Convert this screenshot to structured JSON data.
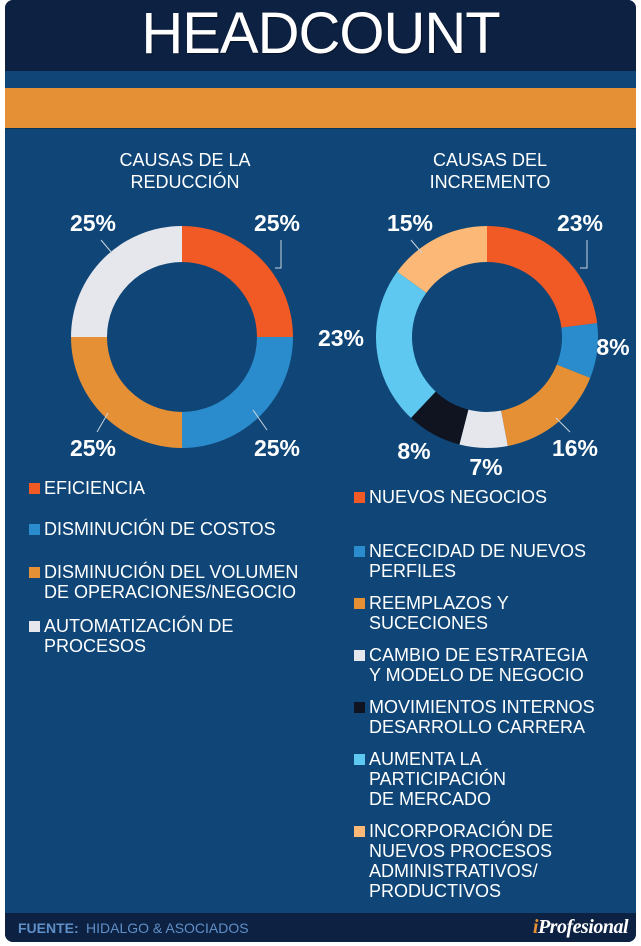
{
  "header": {
    "title": "HEADCOUNT"
  },
  "colors": {
    "navy": "#0d2143",
    "body_blue": "#0f4677",
    "orange_band": "#e69035",
    "text": "#ffffff",
    "footer_text": "#5f8fc7"
  },
  "chart_data": [
    {
      "type": "pie",
      "variant": "donut",
      "title": "CAUSAS DE LA REDUCCIÓN",
      "title_lines": [
        "CAUSAS DE LA",
        "REDUCCIÓN"
      ],
      "slices": [
        {
          "label": "EFICIENCIA",
          "value": 25,
          "display": "25%",
          "color": "#f15a24"
        },
        {
          "label": "DISMINUCIÓN DE COSTOS",
          "value": 25,
          "display": "25%",
          "color": "#2b8ccd"
        },
        {
          "label": "DISMINUCIÓN DEL VOLUMEN DE OPERACIONES/NEGOCIO",
          "value": 25,
          "display": "25%",
          "color": "#e69035"
        },
        {
          "label": "AUTOMATIZACIÓN DE PROCESOS",
          "value": 25,
          "display": "25%",
          "color": "#e6e7ec"
        }
      ],
      "legend": [
        {
          "lines": [
            "EFICIENCIA"
          ],
          "color": "#f15a24"
        },
        {
          "lines": [
            "DISMINUCIÓN DE COSTOS"
          ],
          "color": "#2b8ccd"
        },
        {
          "lines": [
            "DISMINUCIÓN DEL VOLUMEN",
            "DE OPERACIONES/NEGOCIO"
          ],
          "color": "#e69035"
        },
        {
          "lines": [
            "AUTOMATIZACIÓN DE",
            "PROCESOS"
          ],
          "color": "#e6e7ec"
        }
      ]
    },
    {
      "type": "pie",
      "variant": "donut",
      "title": "CAUSAS DEL INCREMENTO",
      "title_lines": [
        "CAUSAS DEL",
        "INCREMENTO"
      ],
      "slices": [
        {
          "label": "NUEVOS NEGOCIOS",
          "value": 23,
          "display": "23%",
          "color": "#f15a24"
        },
        {
          "label": "NECECIDAD DE NUEVOS PERFILES",
          "value": 8,
          "display": "8%",
          "color": "#2b8ccd"
        },
        {
          "label": "REEMPLAZOS Y SUCECIONES",
          "value": 16,
          "display": "16%",
          "color": "#e69035"
        },
        {
          "label": "CAMBIO DE ESTRATEGIA Y MODELO DE NEGOCIO",
          "value": 7,
          "display": "7%",
          "color": "#e6e7ec"
        },
        {
          "label": "MOVIMIENTOS INTERNOS DESARROLLO CARRERA",
          "value": 8,
          "display": "8%",
          "color": "#0f1420"
        },
        {
          "label": "AUMENTA LA PARTICIPACIÓN DE MERCADO",
          "value": 23,
          "display": "23%",
          "color": "#5ec8f0"
        },
        {
          "label": "INCORPORACIÓN DE NUEVOS PROCESOS ADMINISTRATIVOS/ PRODUCTIVOS",
          "value": 15,
          "display": "15%",
          "color": "#fbb877"
        }
      ],
      "legend": [
        {
          "lines": [
            "NUEVOS NEGOCIOS"
          ],
          "color": "#f15a24"
        },
        {
          "lines": [
            "NECECIDAD DE NUEVOS",
            "PERFILES"
          ],
          "color": "#2b8ccd"
        },
        {
          "lines": [
            "REEMPLAZOS Y",
            "SUCECIONES"
          ],
          "color": "#e69035"
        },
        {
          "lines": [
            "CAMBIO DE ESTRATEGIA",
            "Y MODELO DE NEGOCIO"
          ],
          "color": "#e6e7ec"
        },
        {
          "lines": [
            "MOVIMIENTOS INTERNOS",
            "DESARROLLO CARRERA"
          ],
          "color": "#0f1420"
        },
        {
          "lines": [
            "AUMENTA LA",
            "PARTICIPACIÓN",
            "DE MERCADO"
          ],
          "color": "#5ec8f0"
        },
        {
          "lines": [
            "INCORPORACIÓN DE",
            "NUEVOS PROCESOS",
            "ADMINISTRATIVOS/",
            "PRODUCTIVOS"
          ],
          "color": "#fbb877"
        }
      ]
    }
  ],
  "footer": {
    "label": "FUENTE:",
    "source": "HIDALGO & ASOCIADOS",
    "brand_i": "i",
    "brand_rest": "Profesional"
  }
}
